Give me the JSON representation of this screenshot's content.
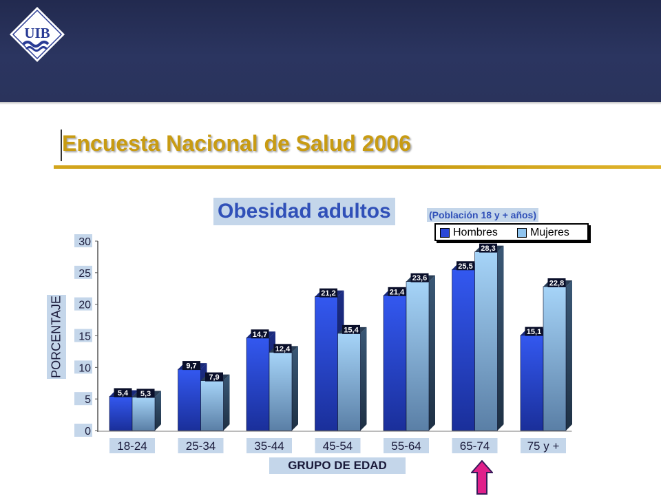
{
  "header": {
    "logo_text": "UIB",
    "logo_color": "#2a3c95",
    "background": "#2b3560"
  },
  "page": {
    "title": "Encuesta Nacional de Salud 2006",
    "title_color": "#c89b12"
  },
  "chart_data": {
    "type": "bar",
    "title": "Obesidad adultos",
    "subtitle": "(Población 18 y + años)",
    "xlabel": "GRUPO DE EDAD",
    "ylabel": "PORCENTAJE",
    "categories": [
      "18-24",
      "25-34",
      "35-44",
      "45-54",
      "55-64",
      "65-74",
      "75 y +"
    ],
    "series": [
      {
        "name": "Hombres",
        "values": [
          5.4,
          9.7,
          14.7,
          21.2,
          21.4,
          25.5,
          15.1
        ],
        "labels": [
          "5,4",
          "9,7",
          "14,7",
          "21,2",
          "21,4",
          "25,5",
          "15,1"
        ],
        "color": "#2a47d8"
      },
      {
        "name": "Mujeres",
        "values": [
          5.3,
          7.9,
          12.4,
          15.4,
          23.6,
          28.3,
          22.8
        ],
        "labels": [
          "5,3",
          "7,9",
          "12,4",
          "15,4",
          "23,6",
          "28,3",
          "22,8"
        ],
        "color": "#8fc4ef"
      }
    ],
    "yticks": [
      "0",
      "5",
      "10",
      "15",
      "20",
      "25",
      "30"
    ],
    "ylim": [
      0,
      30
    ],
    "grid": false,
    "legend_position": "top-right",
    "highlight_category": "65-74",
    "highlight_color": "#e0208a"
  }
}
